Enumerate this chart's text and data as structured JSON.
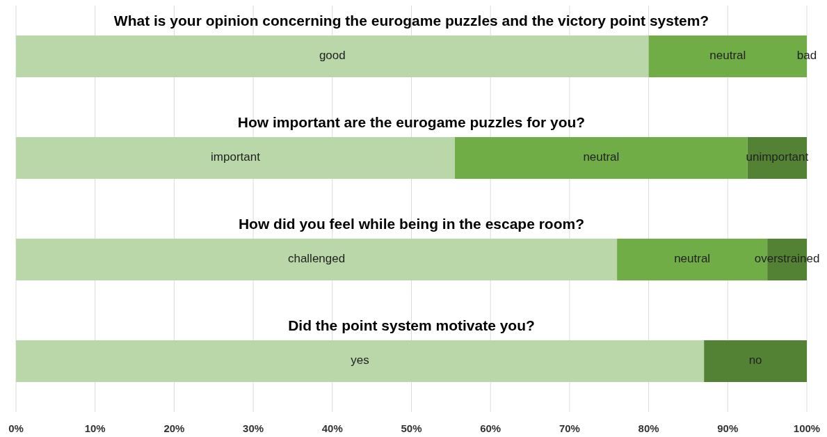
{
  "chart_data": {
    "type": "bar",
    "orientation": "horizontal",
    "stacked": true,
    "categories": [
      "What is your opinion concerning the eurogame puzzles and the victory point system?",
      "How important are the eurogame puzzles for you?",
      "How did you feel while being in the escape room?",
      "Did the point system motivate you?"
    ],
    "series": [
      {
        "color": "#b9d7a8",
        "values": [
          80,
          55.5,
          76,
          87
        ],
        "value_labels": [
          "good",
          "important",
          "challenged",
          "yes"
        ]
      },
      {
        "color": "#70ad47",
        "values": [
          20,
          37,
          19,
          null
        ],
        "value_labels": [
          "neutral",
          "neutral",
          "neutral",
          null
        ]
      },
      {
        "color": "#548235",
        "values": [
          0,
          7.5,
          5,
          13
        ],
        "value_labels": [
          "bad",
          "unimportant",
          "overstrained",
          "no"
        ]
      }
    ],
    "xlim": [
      0,
      100
    ],
    "xticks": [
      {
        "value": 0,
        "label": "0%"
      },
      {
        "value": 10,
        "label": "10%"
      },
      {
        "value": 20,
        "label": "20%"
      },
      {
        "value": 30,
        "label": "30%"
      },
      {
        "value": 40,
        "label": "40%"
      },
      {
        "value": 50,
        "label": "50%"
      },
      {
        "value": 60,
        "label": "60%"
      },
      {
        "value": 70,
        "label": "70%"
      },
      {
        "value": 80,
        "label": "80%"
      },
      {
        "value": 90,
        "label": "90%"
      },
      {
        "value": 100,
        "label": "100%"
      }
    ],
    "grid": "x",
    "legend": false
  }
}
